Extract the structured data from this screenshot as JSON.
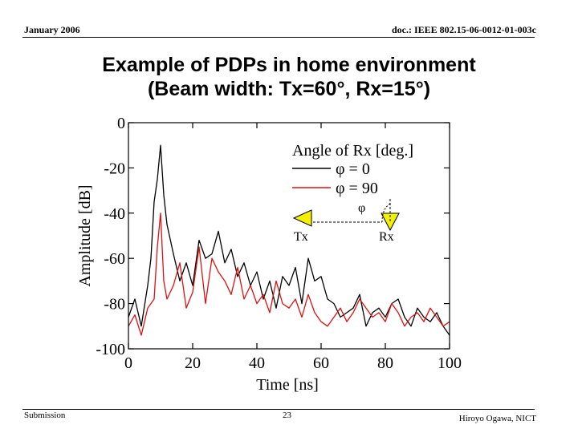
{
  "header": {
    "date": "January 2006",
    "doc_id": "doc.: IEEE 802.15-06-0012-01-003c"
  },
  "slide": {
    "title_line1": "Example of PDPs in home environment",
    "title_line2": "(Beam width: Tx=60°, Rx=15°)"
  },
  "chart_data": {
    "type": "line",
    "xlabel": "Time [ns]",
    "ylabel": "Amplitude [dB]",
    "xlim": [
      0,
      100
    ],
    "ylim": [
      -100,
      0
    ],
    "xticks": [
      0,
      20,
      40,
      60,
      80,
      100
    ],
    "yticks": [
      0,
      -20,
      -40,
      -60,
      -80,
      -100
    ],
    "legend": {
      "title": "Angle of Rx [deg.]",
      "position": "top-right",
      "entries": [
        "φ = 0",
        "φ = 90"
      ]
    },
    "inset": {
      "angle_symbol": "φ",
      "tx_label": "Tx",
      "rx_label": "Rx"
    },
    "series": [
      {
        "name": "φ = 0",
        "color": "#000000",
        "x": [
          0,
          2,
          4,
          6,
          7,
          8,
          9,
          10,
          11,
          12,
          14,
          16,
          18,
          20,
          22,
          24,
          26,
          28,
          30,
          32,
          34,
          36,
          38,
          40,
          42,
          44,
          46,
          48,
          50,
          52,
          54,
          56,
          58,
          60,
          62,
          64,
          66,
          68,
          70,
          72,
          74,
          76,
          78,
          80,
          82,
          84,
          86,
          88,
          90,
          92,
          94,
          96,
          98,
          100
        ],
        "y": [
          -86,
          -78,
          -90,
          -72,
          -60,
          -35,
          -25,
          -10,
          -32,
          -45,
          -58,
          -70,
          -62,
          -72,
          -52,
          -60,
          -58,
          -48,
          -62,
          -56,
          -68,
          -62,
          -72,
          -66,
          -78,
          -70,
          -82,
          -68,
          -72,
          -64,
          -80,
          -60,
          -70,
          -68,
          -78,
          -80,
          -86,
          -84,
          -82,
          -76,
          -90,
          -84,
          -82,
          -86,
          -80,
          -78,
          -86,
          -90,
          -82,
          -86,
          -88,
          -84,
          -90,
          -94
        ]
      },
      {
        "name": "φ = 90",
        "color": "#dd1111",
        "x": [
          0,
          2,
          4,
          6,
          8,
          9,
          10,
          11,
          12,
          14,
          16,
          18,
          20,
          22,
          24,
          26,
          28,
          30,
          32,
          34,
          36,
          38,
          40,
          42,
          44,
          46,
          48,
          50,
          52,
          54,
          56,
          58,
          60,
          62,
          64,
          66,
          68,
          70,
          72,
          74,
          76,
          78,
          80,
          82,
          84,
          86,
          88,
          90,
          92,
          94,
          96,
          98,
          100
        ],
        "y": [
          -90,
          -85,
          -94,
          -82,
          -78,
          -55,
          -40,
          -70,
          -78,
          -72,
          -62,
          -82,
          -75,
          -55,
          -80,
          -60,
          -66,
          -70,
          -76,
          -64,
          -78,
          -72,
          -80,
          -76,
          -84,
          -70,
          -80,
          -82,
          -78,
          -86,
          -76,
          -84,
          -88,
          -90,
          -86,
          -82,
          -88,
          -84,
          -78,
          -82,
          -86,
          -84,
          -88,
          -80,
          -84,
          -90,
          -86,
          -84,
          -88,
          -82,
          -86,
          -90,
          -88
        ]
      }
    ]
  },
  "footer": {
    "left": "Submission",
    "page": "23",
    "author": "Hiroyo Ogawa, NICT"
  }
}
